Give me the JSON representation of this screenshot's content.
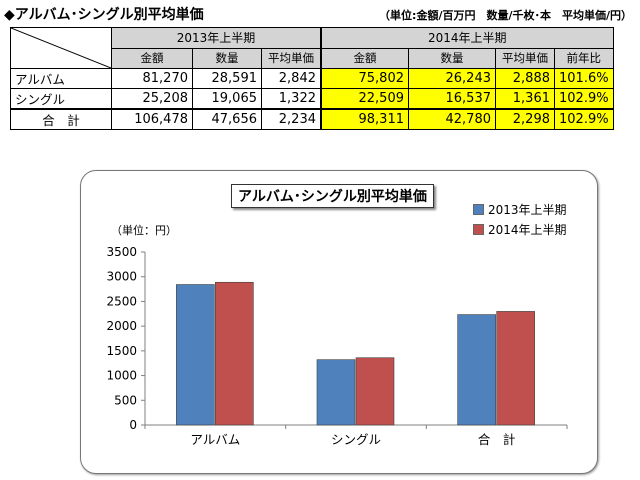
{
  "header": {
    "title": "◆アルバム･シングル別平均単価",
    "unit_note": "（単位:金額/百万円　数量/千枚･本　平均単価/円）"
  },
  "table": {
    "period_2013": "2013年上半期",
    "period_2014": "2014年上半期",
    "col_headers_2013": [
      "金額",
      "数量",
      "平均単価"
    ],
    "col_headers_2014": [
      "金額",
      "数量",
      "平均単価",
      "前年比"
    ],
    "rows": [
      {
        "label": "アルバム",
        "v2013": [
          "81,270",
          "28,591",
          "2,842"
        ],
        "v2014": [
          "75,802",
          "26,243",
          "2,888",
          "101.6%"
        ]
      },
      {
        "label": "シングル",
        "v2013": [
          "25,208",
          "19,065",
          "1,322"
        ],
        "v2014": [
          "22,509",
          "16,537",
          "1,361",
          "102.9%"
        ]
      },
      {
        "label": "合　計",
        "v2013": [
          "106,478",
          "47,656",
          "2,234"
        ],
        "v2014": [
          "98,311",
          "42,780",
          "2,298",
          "102.9%"
        ]
      }
    ]
  },
  "chart_data": {
    "type": "bar",
    "title": "アルバム･シングル別平均単価",
    "y_unit_label": "（単位：円）",
    "categories": [
      "アルバム",
      "シングル",
      "合　計"
    ],
    "series": [
      {
        "name": "2013年上半期",
        "values": [
          2842,
          1322,
          2234
        ],
        "color": "#4f81bd"
      },
      {
        "name": "2014年上半期",
        "values": [
          2888,
          1361,
          2298
        ],
        "color": "#c0504d"
      }
    ],
    "ylim": [
      0,
      3500
    ],
    "yticks": [
      0,
      500,
      1000,
      1500,
      2000,
      2500,
      3000,
      3500
    ],
    "grid": false,
    "legend_position": "top-right"
  }
}
